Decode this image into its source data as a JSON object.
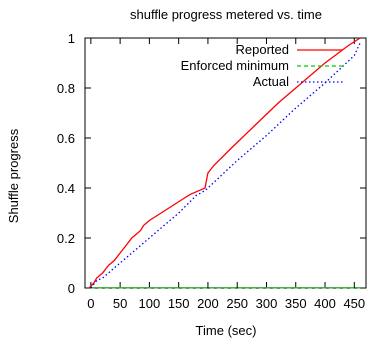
{
  "chart_data": {
    "type": "line",
    "title": "shuffle progress metered vs. time",
    "xlabel": "Time (sec)",
    "ylabel": "Shuffle progress",
    "xlim": [
      -10,
      470
    ],
    "ylim": [
      0,
      1
    ],
    "xticks": [
      0,
      50,
      100,
      150,
      200,
      250,
      300,
      350,
      400,
      450
    ],
    "xtick_labels": [
      "0",
      "50",
      "100",
      "150",
      "200",
      "250",
      "300",
      "350",
      "400",
      "450"
    ],
    "yticks": [
      0,
      0.2,
      0.4,
      0.6,
      0.8,
      1
    ],
    "ytick_labels": [
      "0",
      "0.2",
      "0.4",
      "0.6",
      "0.8",
      "1"
    ],
    "grid": false,
    "legend_position": "top-right",
    "series": [
      {
        "name": "Reported",
        "color": "#ff0000",
        "dash": "solid",
        "x": [
          -3,
          5,
          10,
          15,
          20,
          30,
          40,
          50,
          60,
          70,
          80,
          85,
          90,
          100,
          120,
          140,
          160,
          170,
          180,
          190,
          195,
          200,
          210,
          240,
          280,
          320,
          360,
          400,
          440,
          460
        ],
        "y": [
          0,
          0.02,
          0.04,
          0.05,
          0.06,
          0.09,
          0.11,
          0.14,
          0.17,
          0.2,
          0.22,
          0.23,
          0.25,
          0.27,
          0.3,
          0.33,
          0.36,
          0.375,
          0.385,
          0.395,
          0.4,
          0.46,
          0.49,
          0.56,
          0.65,
          0.74,
          0.82,
          0.9,
          0.97,
          1.0
        ]
      },
      {
        "name": "Enforced minimum",
        "color": "#00cc00",
        "dash": "dashed",
        "x": [
          0,
          460
        ],
        "y": [
          0.001,
          0.001
        ]
      },
      {
        "name": "Actual",
        "color": "#0000ff",
        "dash": "dotted",
        "x": [
          0,
          10,
          20,
          50,
          100,
          150,
          180,
          195,
          200,
          250,
          300,
          350,
          400,
          450,
          460
        ],
        "y": [
          0,
          0.03,
          0.04,
          0.1,
          0.2,
          0.3,
          0.37,
          0.39,
          0.4,
          0.51,
          0.61,
          0.72,
          0.82,
          0.93,
          0.98
        ]
      }
    ]
  }
}
